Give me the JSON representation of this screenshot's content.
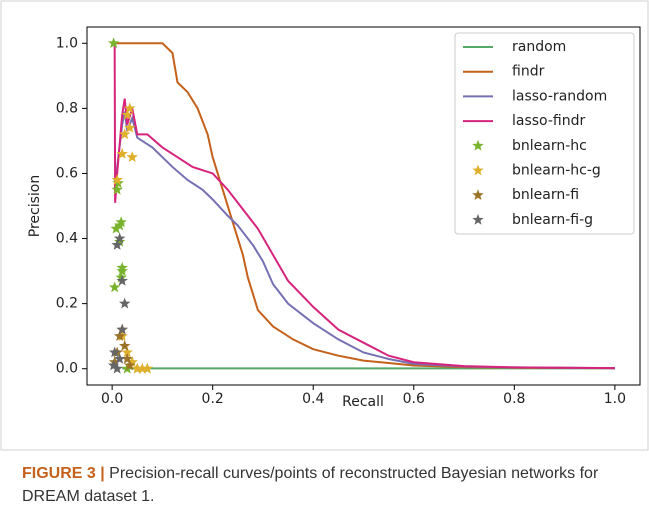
{
  "chart_data": {
    "type": "line",
    "xlabel": "Recall",
    "ylabel": "Precision",
    "xlim": [
      -0.05,
      1.05
    ],
    "ylim": [
      -0.05,
      1.05
    ],
    "xticks": [
      {
        "value": 0,
        "label": "0.0"
      },
      0.2,
      0.4,
      0.6,
      0.8,
      {
        "value": 1,
        "label": "1.0"
      }
    ],
    "yticks": [
      {
        "value": 0,
        "label": "0.0"
      },
      0.2,
      0.4,
      0.6,
      0.8,
      {
        "value": 1,
        "label": "1.0"
      }
    ],
    "legend": "upper right",
    "series": [
      {
        "name": "random",
        "color": "#55a868",
        "kind": "line",
        "x": [
          0.02,
          0.2,
          0.4,
          0.6,
          0.8,
          1.0
        ],
        "values": [
          0.001,
          0.001,
          0.001,
          0.001,
          0.001,
          0.001
        ]
      },
      {
        "name": "findr",
        "color": "#c4611a",
        "kind": "line",
        "x": [
          0.005,
          0.1,
          0.12,
          0.13,
          0.15,
          0.17,
          0.19,
          0.2,
          0.22,
          0.24,
          0.26,
          0.27,
          0.29,
          0.32,
          0.36,
          0.4,
          0.45,
          0.5,
          0.6,
          0.7,
          0.8,
          1.0
        ],
        "values": [
          1.0,
          1.0,
          0.97,
          0.88,
          0.85,
          0.8,
          0.72,
          0.65,
          0.55,
          0.45,
          0.35,
          0.28,
          0.18,
          0.13,
          0.09,
          0.06,
          0.04,
          0.025,
          0.01,
          0.005,
          0.003,
          0.002
        ]
      },
      {
        "name": "lasso-random",
        "color": "#7570b3",
        "kind": "line",
        "x": [
          0.005,
          0.01,
          0.02,
          0.025,
          0.03,
          0.04,
          0.05,
          0.06,
          0.08,
          0.1,
          0.12,
          0.15,
          0.18,
          0.2,
          0.23,
          0.25,
          0.28,
          0.3,
          0.32,
          0.35,
          0.4,
          0.45,
          0.5,
          0.55,
          0.6,
          0.7,
          0.8,
          1.0
        ],
        "values": [
          0.55,
          0.62,
          0.75,
          0.79,
          0.73,
          0.77,
          0.71,
          0.7,
          0.68,
          0.65,
          0.62,
          0.58,
          0.55,
          0.52,
          0.47,
          0.44,
          0.38,
          0.33,
          0.26,
          0.2,
          0.14,
          0.09,
          0.05,
          0.03,
          0.015,
          0.007,
          0.004,
          0.002
        ]
      },
      {
        "name": "lasso-findr",
        "color": "#d6247d",
        "kind": "line",
        "x": [
          0.005,
          0.006,
          0.01,
          0.02,
          0.025,
          0.03,
          0.04,
          0.05,
          0.07,
          0.1,
          0.13,
          0.16,
          0.2,
          0.23,
          0.26,
          0.29,
          0.32,
          0.35,
          0.4,
          0.45,
          0.5,
          0.55,
          0.6,
          0.7,
          0.8,
          1.0
        ],
        "values": [
          1.0,
          0.51,
          0.6,
          0.78,
          0.83,
          0.75,
          0.8,
          0.72,
          0.72,
          0.68,
          0.65,
          0.62,
          0.6,
          0.55,
          0.49,
          0.43,
          0.35,
          0.27,
          0.19,
          0.12,
          0.08,
          0.04,
          0.02,
          0.008,
          0.004,
          0.002
        ]
      },
      {
        "name": "bnlearn-hc",
        "color": "#7ab32e",
        "kind": "scatter",
        "x": [
          0.003,
          0.005,
          0.008,
          0.01,
          0.012,
          0.015,
          0.018,
          0.02,
          0.02,
          0.018,
          0.015,
          0.03,
          0.05,
          0.07
        ],
        "values": [
          1.0,
          0.25,
          0.43,
          0.55,
          0.57,
          0.44,
          0.45,
          0.31,
          0.3,
          0.28,
          0.39,
          0.0,
          0.0,
          0.0
        ]
      },
      {
        "name": "bnlearn-hc-g",
        "color": "#e0b02c",
        "kind": "scatter",
        "x": [
          0.01,
          0.02,
          0.025,
          0.03,
          0.035,
          0.04,
          0.035,
          0.02,
          0.03,
          0.04,
          0.05,
          0.06,
          0.07
        ],
        "values": [
          0.58,
          0.66,
          0.72,
          0.78,
          0.8,
          0.65,
          0.74,
          0.1,
          0.05,
          0.02,
          0.0,
          0.0,
          0.0
        ]
      },
      {
        "name": "bnlearn-fi",
        "color": "#9c7428",
        "kind": "scatter",
        "x": [
          0.005,
          0.01,
          0.015,
          0.02,
          0.025,
          0.03,
          0.035
        ],
        "values": [
          0.02,
          0.05,
          0.1,
          0.12,
          0.07,
          0.03,
          0.01
        ]
      },
      {
        "name": "bnlearn-fi-g",
        "color": "#666666",
        "kind": "scatter",
        "x": [
          0.003,
          0.005,
          0.01,
          0.015,
          0.02,
          0.025,
          0.02,
          0.015,
          0.01
        ],
        "values": [
          0.01,
          0.05,
          0.38,
          0.4,
          0.27,
          0.2,
          0.12,
          0.03,
          0.0
        ]
      }
    ]
  },
  "caption": {
    "label": "FIGURE 3 |",
    "text": "Precision-recall curves/points of reconstructed Bayesian networks for DREAM dataset 1."
  }
}
